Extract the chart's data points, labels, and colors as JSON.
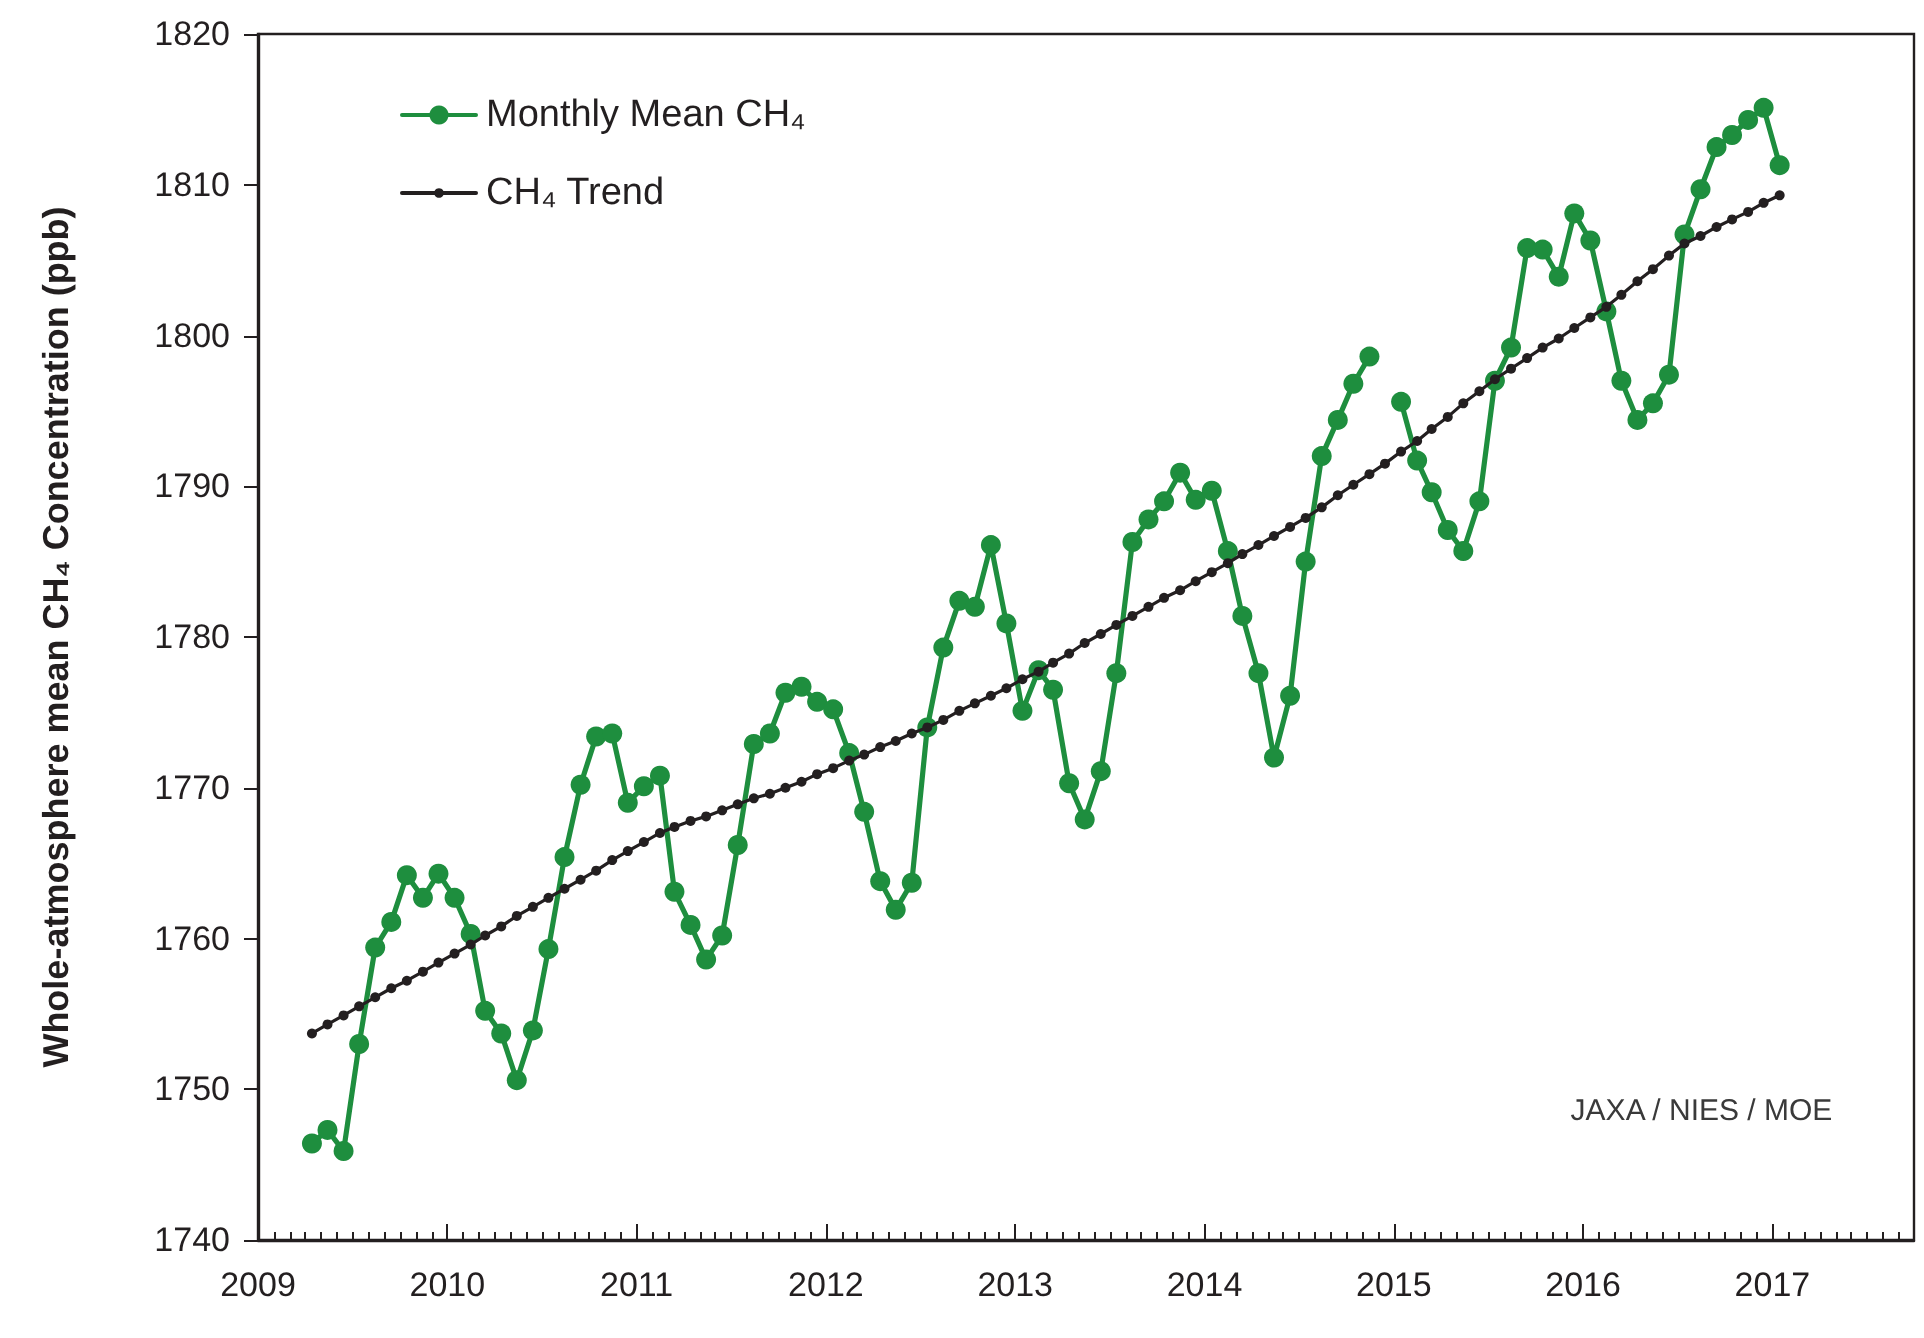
{
  "chart_data": {
    "type": "line",
    "ylabel": "Whole-atmosphere mean CH₄ Concentration (ppb)",
    "x": [
      "2009-04-15",
      "2009-05-15",
      "2009-06-15",
      "2009-07-15",
      "2009-08-15",
      "2009-09-15",
      "2009-10-15",
      "2009-11-15",
      "2009-12-15",
      "2010-01-15",
      "2010-02-15",
      "2010-03-15",
      "2010-04-15",
      "2010-05-15",
      "2010-06-15",
      "2010-07-15",
      "2010-08-15",
      "2010-09-15",
      "2010-10-15",
      "2010-11-15",
      "2010-12-15",
      "2011-01-15",
      "2011-02-15",
      "2011-03-15",
      "2011-04-15",
      "2011-05-15",
      "2011-06-15",
      "2011-07-15",
      "2011-08-15",
      "2011-09-15",
      "2011-10-15",
      "2011-11-15",
      "2011-12-15",
      "2012-01-15",
      "2012-02-15",
      "2012-03-15",
      "2012-04-15",
      "2012-05-15",
      "2012-06-15",
      "2012-07-15",
      "2012-08-15",
      "2012-09-15",
      "2012-10-15",
      "2012-11-15",
      "2012-12-15",
      "2013-01-15",
      "2013-02-15",
      "2013-03-15",
      "2013-04-15",
      "2013-05-15",
      "2013-06-15",
      "2013-07-15",
      "2013-08-15",
      "2013-09-15",
      "2013-10-15",
      "2013-11-15",
      "2013-12-15",
      "2014-01-15",
      "2014-02-15",
      "2014-03-15",
      "2014-04-15",
      "2014-05-15",
      "2014-06-15",
      "2014-07-15",
      "2014-08-15",
      "2014-09-15",
      "2014-10-15",
      "2014-11-15",
      "2014-12-15",
      "2015-01-15",
      "2015-02-15",
      "2015-03-15",
      "2015-04-15",
      "2015-05-15",
      "2015-06-15",
      "2015-07-15",
      "2015-08-15",
      "2015-09-15",
      "2015-10-15",
      "2015-11-15",
      "2015-12-15",
      "2016-01-15",
      "2016-02-15",
      "2016-03-15",
      "2016-04-15",
      "2016-05-15",
      "2016-06-15",
      "2016-07-15",
      "2016-08-15",
      "2016-09-15",
      "2016-10-15",
      "2016-11-15",
      "2016-12-15",
      "2017-01-15"
    ],
    "series": [
      {
        "name": "Monthly Mean CH₄",
        "color": "#1e8e3e",
        "values": [
          1746.4,
          1747.3,
          1745.9,
          1753.0,
          1759.4,
          1761.1,
          1764.2,
          1762.7,
          1764.3,
          1762.7,
          1760.3,
          1755.2,
          1753.7,
          1750.6,
          1753.9,
          1759.3,
          1765.4,
          1770.2,
          1773.4,
          1773.6,
          1769.0,
          1770.1,
          1770.8,
          1763.1,
          1760.9,
          1758.6,
          1760.2,
          1766.2,
          1772.9,
          1773.6,
          1776.3,
          1776.7,
          1775.7,
          1775.2,
          1772.3,
          1768.4,
          1763.8,
          1761.9,
          1763.7,
          1774.0,
          1779.3,
          1782.4,
          1782.0,
          1786.1,
          1780.9,
          1775.1,
          1777.8,
          1776.5,
          1770.3,
          1767.9,
          1771.1,
          1777.6,
          1786.3,
          1787.8,
          1789.0,
          1790.9,
          1789.1,
          1789.7,
          1785.7,
          1781.4,
          1777.6,
          1772.0,
          1776.1,
          1785.0,
          1792.0,
          1794.4,
          1796.8,
          1798.6,
          null,
          1795.6,
          1791.7,
          1789.6,
          1787.1,
          1785.7,
          1789.0,
          1797.0,
          1799.2,
          1805.8,
          1805.7,
          1803.9,
          1808.1,
          1806.3,
          1801.6,
          1797.0,
          1794.4,
          1795.5,
          1797.4,
          1806.7,
          1809.7,
          1812.5,
          1813.3,
          1814.3,
          1815.1,
          1811.3
        ]
      },
      {
        "name": "CH₄ Trend",
        "color": "#231f20",
        "values": [
          1753.7,
          1754.3,
          1754.9,
          1755.5,
          1756.1,
          1756.7,
          1757.2,
          1757.8,
          1758.4,
          1759.0,
          1759.6,
          1760.2,
          1760.8,
          1761.5,
          1762.1,
          1762.7,
          1763.3,
          1763.9,
          1764.5,
          1765.2,
          1765.8,
          1766.4,
          1767.0,
          1767.4,
          1767.8,
          1768.1,
          1768.5,
          1768.9,
          1769.3,
          1769.6,
          1770.0,
          1770.4,
          1770.9,
          1771.3,
          1771.8,
          1772.2,
          1772.7,
          1773.1,
          1773.6,
          1774.0,
          1774.5,
          1775.1,
          1775.6,
          1776.1,
          1776.6,
          1777.2,
          1777.7,
          1778.3,
          1778.9,
          1779.6,
          1780.2,
          1780.8,
          1781.4,
          1782.0,
          1782.6,
          1783.1,
          1783.7,
          1784.3,
          1784.9,
          1785.5,
          1786.1,
          1786.7,
          1787.3,
          1787.9,
          1788.6,
          1789.4,
          1790.1,
          1790.8,
          1791.5,
          1792.3,
          1793.0,
          1793.8,
          1794.6,
          1795.5,
          1796.3,
          1797.1,
          1797.8,
          1798.5,
          1799.2,
          1799.8,
          1800.5,
          1801.2,
          1801.9,
          1802.7,
          1803.6,
          1804.4,
          1805.3,
          1806.1,
          1806.6,
          1807.2,
          1807.7,
          1808.2,
          1808.8,
          1809.3
        ]
      }
    ],
    "xlim": [
      "2009-01-01",
      "2017-10-01"
    ],
    "xticks": [
      "2009",
      "2010",
      "2011",
      "2012",
      "2013",
      "2014",
      "2015",
      "2016",
      "2017"
    ],
    "ylim": [
      1740,
      1820
    ],
    "yticks": [
      1740,
      1750,
      1760,
      1770,
      1780,
      1790,
      1800,
      1810,
      1820
    ],
    "marker": "circle",
    "legend": "top left",
    "annotations": [
      "JAXA / NIES / MOE"
    ]
  }
}
